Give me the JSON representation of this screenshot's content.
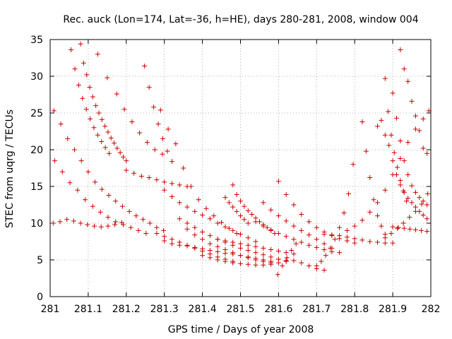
{
  "chart_data": {
    "type": "scatter",
    "title": "Rec. auck (Lon=174, Lat=-36, h=HE), days 280-281, 2008, window 004",
    "xlabel": "GPS time / Days of year 2008",
    "ylabel": "STEC from uqrg / TECUs",
    "xlim": [
      281,
      282
    ],
    "ylim": [
      0,
      35
    ],
    "xticks": [
      281,
      281.1,
      281.2,
      281.3,
      281.4,
      281.5,
      281.6,
      281.7,
      281.8,
      281.9,
      282
    ],
    "xtick_labels": [
      "281",
      "281.1",
      "281.2",
      "281.3",
      "281.4",
      "281.5",
      "281.6",
      "281.7",
      "281.8",
      "281.9",
      "282"
    ],
    "yticks": [
      0,
      5,
      10,
      15,
      20,
      25,
      30,
      35
    ],
    "ytick_labels": [
      "0",
      "5",
      "10",
      "15",
      "20",
      "25",
      "30",
      "35"
    ],
    "grid": true,
    "marker": "+",
    "color": "#cc0000",
    "series": [
      {
        "name": "s1",
        "x": [
          281.01,
          281.028,
          281.046,
          281.064,
          281.082,
          281.1,
          281.118,
          281.136,
          281.154,
          281.172,
          281.19,
          281.208,
          281.226,
          281.244,
          281.262,
          281.28,
          281.298
        ],
        "y": [
          25.3,
          23.5,
          21.5,
          20.0,
          18.5,
          17.0,
          15.6,
          14.6,
          13.8,
          13.0,
          12.3,
          11.6,
          11.0,
          10.5,
          10.0,
          9.4,
          9.0
        ]
      },
      {
        "name": "s2",
        "x": [
          281.012,
          281.032,
          281.052,
          281.072,
          281.092,
          281.112,
          281.132,
          281.152,
          281.172,
          281.192,
          281.212,
          281.232,
          281.252
        ],
        "y": [
          18.5,
          17.0,
          15.5,
          14.5,
          13.2,
          12.3,
          11.5,
          10.8,
          10.2,
          9.8,
          9.4,
          9.0,
          8.6
        ]
      },
      {
        "name": "s3",
        "x": [
          281.008,
          281.026,
          281.044,
          281.062,
          281.08,
          281.098,
          281.116,
          281.134,
          281.152,
          281.17,
          281.188
        ],
        "y": [
          10.0,
          10.2,
          10.5,
          10.3,
          10.0,
          9.8,
          9.6,
          9.5,
          9.6,
          9.8,
          10.1
        ]
      },
      {
        "name": "s4",
        "x": [
          281.055,
          281.065,
          281.075,
          281.085,
          281.095,
          281.105,
          281.115,
          281.125,
          281.135,
          281.145,
          281.155
        ],
        "y": [
          33.6,
          31.0,
          28.8,
          27.0,
          25.5,
          24.2,
          23.0,
          22.0,
          21.1,
          20.3,
          19.5
        ]
      },
      {
        "name": "s5",
        "x": [
          281.08,
          281.088,
          281.096,
          281.104,
          281.112,
          281.12,
          281.128,
          281.136,
          281.144,
          281.152,
          281.16,
          281.168,
          281.176,
          281.184,
          281.192,
          281.2
        ],
        "y": [
          34.4,
          31.8,
          30.2,
          28.5,
          27.2,
          26.0,
          25.0,
          24.1,
          23.2,
          22.4,
          21.6,
          20.9,
          20.2,
          19.6,
          19.0,
          18.5
        ]
      },
      {
        "name": "s6",
        "x": [
          281.125,
          281.15,
          281.175,
          281.195,
          281.215,
          281.235,
          281.255,
          281.275,
          281.295
        ],
        "y": [
          33.0,
          29.8,
          27.6,
          25.5,
          23.8,
          22.3,
          21.0,
          20.0,
          19.4
        ]
      },
      {
        "name": "s7",
        "x": [
          281.2,
          281.22,
          281.24,
          281.26,
          281.28,
          281.3,
          281.32,
          281.34,
          281.36
        ],
        "y": [
          17.2,
          16.8,
          16.4,
          16.2,
          15.9,
          15.6,
          15.4,
          15.2,
          15.0
        ]
      },
      {
        "name": "s8",
        "x": [
          281.248,
          281.26,
          281.272,
          281.284,
          281.296,
          281.308,
          281.32
        ],
        "y": [
          31.4,
          28.5,
          25.8,
          23.5,
          21.5,
          19.8,
          18.4
        ]
      },
      {
        "name": "s9",
        "x": [
          281.29,
          281.31,
          281.33,
          281.35,
          281.37,
          281.39,
          281.41,
          281.43,
          281.45,
          281.47,
          281.49
        ],
        "y": [
          25.4,
          22.8,
          20.8,
          17.5,
          15.0,
          13.2,
          12.0,
          11.0,
          10.1,
          9.3,
          8.6
        ]
      },
      {
        "name": "s10",
        "x": [
          281.3,
          281.32,
          281.34,
          281.36,
          281.38,
          281.4,
          281.42,
          281.44,
          281.46,
          281.48,
          281.5,
          281.52,
          281.54
        ],
        "y": [
          14.5,
          13.6,
          12.8,
          12.2,
          11.6,
          11.1,
          10.6,
          10.0,
          9.5,
          9.0,
          8.5,
          8.0,
          7.5
        ]
      },
      {
        "name": "s11",
        "x": [
          281.3,
          281.32,
          281.34,
          281.36,
          281.38,
          281.4,
          281.42,
          281.44,
          281.46,
          281.48,
          281.5,
          281.52,
          281.54,
          281.56,
          281.58
        ],
        "y": [
          7.6,
          7.2,
          7.0,
          6.9,
          6.7,
          6.5,
          6.3,
          6.1,
          5.9,
          5.8,
          5.6,
          5.4,
          5.2,
          5.0,
          4.8
        ]
      },
      {
        "name": "s12",
        "x": [
          281.28,
          281.3,
          281.32,
          281.34,
          281.36,
          281.38,
          281.4,
          281.42,
          281.44,
          281.46,
          281.48
        ],
        "y": [
          8.6,
          8.2,
          7.8,
          7.4,
          7.0,
          6.6,
          6.2,
          5.8,
          5.4,
          5.1,
          4.8
        ]
      },
      {
        "name": "s13",
        "x": [
          281.34,
          281.36,
          281.38,
          281.4,
          281.42,
          281.44,
          281.46,
          281.48,
          281.5,
          281.52,
          281.54,
          281.56,
          281.58,
          281.6,
          281.62
        ],
        "y": [
          10.6,
          10.0,
          9.4,
          8.8,
          8.3,
          7.8,
          7.4,
          7.0,
          6.6,
          6.3,
          6.0,
          5.7,
          5.4,
          5.1,
          4.9
        ]
      },
      {
        "name": "s14",
        "x": [
          281.36,
          281.38,
          281.4,
          281.42,
          281.44,
          281.46,
          281.48,
          281.5,
          281.52,
          281.54,
          281.56,
          281.58
        ],
        "y": [
          9.2,
          8.4,
          7.8,
          7.2,
          6.8,
          6.4,
          6.0,
          5.6,
          5.3,
          5.0,
          4.8,
          4.6
        ]
      },
      {
        "name": "s15",
        "x": [
          281.4,
          281.42,
          281.44,
          281.46,
          281.48,
          281.5,
          281.52,
          281.54,
          281.56,
          281.58,
          281.6,
          281.62,
          281.64,
          281.66,
          281.68,
          281.7,
          281.72
        ],
        "y": [
          5.6,
          5.3,
          5.0,
          4.8,
          4.6,
          4.5,
          4.4,
          4.3,
          4.3,
          4.4,
          4.6,
          4.8,
          4.9,
          4.6,
          4.2,
          3.8,
          3.6
        ]
      },
      {
        "name": "s16",
        "x": [
          281.44,
          281.46,
          281.48,
          281.5,
          281.52,
          281.54,
          281.56,
          281.58,
          281.6,
          281.62,
          281.64
        ],
        "y": [
          7.8,
          7.6,
          7.4,
          7.2,
          7.0,
          6.8,
          6.6,
          6.4,
          6.2,
          6.0,
          5.8
        ]
      },
      {
        "name": "s17",
        "x": [
          281.46,
          281.47,
          281.48,
          281.49,
          281.5,
          281.51,
          281.52
        ],
        "y": [
          13.5,
          12.8,
          12.2,
          11.6,
          11.0,
          10.5,
          10.0
        ]
      },
      {
        "name": "s18",
        "x": [
          281.48,
          281.49,
          281.5,
          281.51,
          281.52,
          281.53,
          281.54,
          281.55,
          281.56,
          281.57,
          281.58,
          281.59
        ],
        "y": [
          15.2,
          13.9,
          13.0,
          12.3,
          11.7,
          11.2,
          10.7,
          10.2,
          9.8,
          9.4,
          9.0,
          8.6
        ]
      },
      {
        "name": "s19",
        "x": [
          281.54,
          281.56,
          281.58,
          281.6,
          281.62,
          281.64,
          281.66,
          281.68,
          281.7,
          281.72,
          281.74
        ],
        "y": [
          10.2,
          9.6,
          9.1,
          8.6,
          8.2,
          7.8,
          7.4,
          7.0,
          6.7,
          6.4,
          6.1
        ]
      },
      {
        "name": "s20",
        "x": [
          281.56,
          281.58,
          281.6,
          281.62,
          281.64,
          281.66,
          281.68,
          281.7,
          281.72,
          281.74,
          281.76
        ],
        "y": [
          12.8,
          11.8,
          11.0,
          10.3,
          9.6,
          9.0,
          8.4,
          7.8,
          7.2,
          6.6,
          6.0
        ]
      },
      {
        "name": "s21",
        "x": [
          281.6,
          281.62,
          281.64,
          281.66,
          281.68,
          281.7,
          281.72,
          281.74,
          281.76,
          281.78,
          281.8
        ],
        "y": [
          15.7,
          13.9,
          12.5,
          11.2,
          10.2,
          9.4,
          8.8,
          8.3,
          7.9,
          7.6,
          7.3
        ]
      },
      {
        "name": "s22",
        "x": [
          281.598,
          281.61,
          281.622,
          281.634,
          281.646
        ],
        "y": [
          3.0,
          4.2,
          5.3,
          6.3,
          7.2
        ]
      },
      {
        "name": "s23",
        "x": [
          281.7,
          281.712,
          281.724,
          281.736,
          281.748,
          281.76,
          281.772,
          281.784,
          281.796
        ],
        "y": [
          4.2,
          4.8,
          5.6,
          6.6,
          7.8,
          9.4,
          11.4,
          14.0,
          18.0
        ]
      },
      {
        "name": "s24",
        "x": [
          281.72,
          281.74,
          281.76,
          281.78,
          281.8,
          281.82,
          281.84,
          281.86,
          281.88,
          281.9
        ],
        "y": [
          8.5,
          8.4,
          8.3,
          8.1,
          7.9,
          7.7,
          7.5,
          7.4,
          7.3,
          7.3
        ]
      },
      {
        "name": "s25",
        "x": [
          281.78,
          281.8,
          281.82,
          281.84,
          281.86,
          281.88,
          281.9,
          281.92,
          281.94,
          281.96,
          281.98,
          281.995
        ],
        "y": [
          9.0,
          9.6,
          10.4,
          11.5,
          12.8,
          14.5,
          16.6,
          18.8,
          21.0,
          22.8,
          24.2,
          25.3
        ]
      },
      {
        "name": "s26",
        "x": [
          281.82,
          281.83,
          281.84,
          281.85,
          281.86,
          281.87,
          281.88
        ],
        "y": [
          23.8,
          19.8,
          16.2,
          13.2,
          11.0,
          9.6,
          8.5
        ]
      },
      {
        "name": "s27",
        "x": [
          281.86,
          281.87,
          281.88,
          281.89,
          281.9,
          281.91,
          281.92,
          281.93,
          281.94,
          281.95,
          281.96,
          281.97,
          281.98,
          281.99
        ],
        "y": [
          23.2,
          24.0,
          22.0,
          20.6,
          18.5,
          16.6,
          15.2,
          14.2,
          13.4,
          12.8,
          12.2,
          11.6,
          11.1,
          10.6
        ]
      },
      {
        "name": "s28",
        "x": [
          281.88,
          281.888,
          281.896,
          281.904,
          281.912,
          281.92,
          281.928,
          281.936
        ],
        "y": [
          29.7,
          25.2,
          22.0,
          19.6,
          17.6,
          15.8,
          14.4,
          13.0
        ]
      },
      {
        "name": "s29",
        "x": [
          281.9,
          281.91,
          281.92,
          281.93,
          281.94,
          281.95,
          281.96,
          281.97,
          281.98,
          281.99
        ],
        "y": [
          27.7,
          24.3,
          21.2,
          18.5,
          16.6,
          15.1,
          14.2,
          13.5,
          13.0,
          12.5
        ]
      },
      {
        "name": "s30",
        "x": [
          281.92,
          281.93,
          281.94,
          281.95,
          281.96,
          281.97,
          281.98,
          281.99
        ],
        "y": [
          33.6,
          31.0,
          29.3,
          26.6,
          24.6,
          22.6,
          20.2,
          19.5
        ]
      },
      {
        "name": "s31",
        "x": [
          281.9,
          281.915,
          281.93,
          281.945,
          281.96,
          281.975,
          281.99
        ],
        "y": [
          9.5,
          9.4,
          9.3,
          9.2,
          9.1,
          9.0,
          8.9
        ]
      },
      {
        "name": "s32",
        "x": [
          281.88,
          281.896,
          281.912,
          281.928,
          281.944,
          281.96,
          281.976,
          281.992
        ],
        "y": [
          8.0,
          8.6,
          9.3,
          10.0,
          10.8,
          11.6,
          12.6,
          14.0
        ]
      }
    ]
  }
}
